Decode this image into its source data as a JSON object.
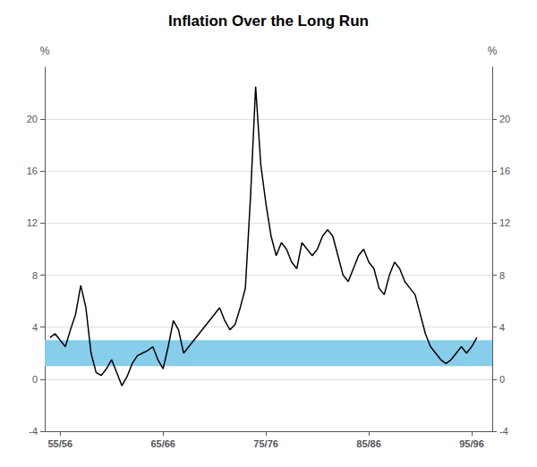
{
  "chart_data": {
    "type": "line",
    "title": "Inflation Over the Long Run",
    "ylabel": "%",
    "y2label": "%",
    "color": "#000000",
    "band": {
      "ymin": 1.0,
      "ymax": 3.0,
      "color": "#87ceeb"
    },
    "x": [
      1954.5,
      1955.0,
      1955.5,
      1956.0,
      1956.5,
      1957.0,
      1957.5,
      1958.0,
      1958.5,
      1959.0,
      1959.5,
      1960.0,
      1960.5,
      1961.0,
      1961.5,
      1962.0,
      1962.5,
      1963.0,
      1963.5,
      1964.0,
      1964.5,
      1965.0,
      1965.5,
      1966.0,
      1966.5,
      1967.0,
      1967.5,
      1968.0,
      1968.5,
      1969.0,
      1969.5,
      1970.0,
      1970.5,
      1971.0,
      1971.5,
      1972.0,
      1972.5,
      1973.0,
      1973.5,
      1974.0,
      1974.5,
      1975.0,
      1975.5,
      1976.0,
      1976.5,
      1977.0,
      1977.5,
      1978.0,
      1978.5,
      1979.0,
      1979.5,
      1980.0,
      1980.5,
      1981.0,
      1981.5,
      1982.0,
      1982.5,
      1983.0,
      1983.5,
      1984.0,
      1984.5,
      1985.0,
      1985.5,
      1986.0,
      1986.5,
      1987.0,
      1987.5,
      1988.0,
      1988.5,
      1989.0,
      1989.5,
      1990.0,
      1990.5,
      1991.0,
      1991.5,
      1992.0,
      1992.5,
      1993.0,
      1993.5,
      1994.0,
      1994.5,
      1995.0,
      1995.5,
      1996.0
    ],
    "values": [
      3.2,
      3.5,
      3.0,
      2.5,
      3.8,
      5.0,
      7.2,
      5.5,
      2.0,
      0.5,
      0.3,
      0.8,
      1.5,
      0.5,
      -0.5,
      0.2,
      1.2,
      1.8,
      2.0,
      2.2,
      2.5,
      1.5,
      0.8,
      2.5,
      4.5,
      3.8,
      2.0,
      2.5,
      3.0,
      3.5,
      4.0,
      4.5,
      5.0,
      5.5,
      4.5,
      3.8,
      4.2,
      5.5,
      7.0,
      14.0,
      22.5,
      16.5,
      13.5,
      11.0,
      9.5,
      10.5,
      10.0,
      9.0,
      8.5,
      10.5,
      10.0,
      9.5,
      10.0,
      11.0,
      11.5,
      11.0,
      9.5,
      8.0,
      7.5,
      8.5,
      9.5,
      10.0,
      9.0,
      8.5,
      7.0,
      6.5,
      8.0,
      9.0,
      8.5,
      7.5,
      7.0,
      6.5,
      5.0,
      3.5,
      2.5,
      2.0,
      1.5,
      1.2,
      1.5,
      2.0,
      2.5,
      2.0,
      2.5,
      3.2
    ],
    "xlim": [
      1954.0,
      1997.5
    ],
    "xticks": [
      {
        "value": 1955.5,
        "label": "55/56"
      },
      {
        "value": 1965.5,
        "label": "65/66"
      },
      {
        "value": 1975.5,
        "label": "75/76"
      },
      {
        "value": 1985.5,
        "label": "85/86"
      },
      {
        "value": 1995.5,
        "label": "95/96"
      }
    ],
    "ylim": [
      -4,
      24
    ],
    "yticks": [
      -4,
      0,
      4,
      8,
      12,
      16,
      20
    ],
    "y2lim": [
      -4,
      24
    ],
    "y2ticks": [
      -4,
      0,
      4,
      8,
      12,
      16,
      20
    ],
    "grid": true
  }
}
